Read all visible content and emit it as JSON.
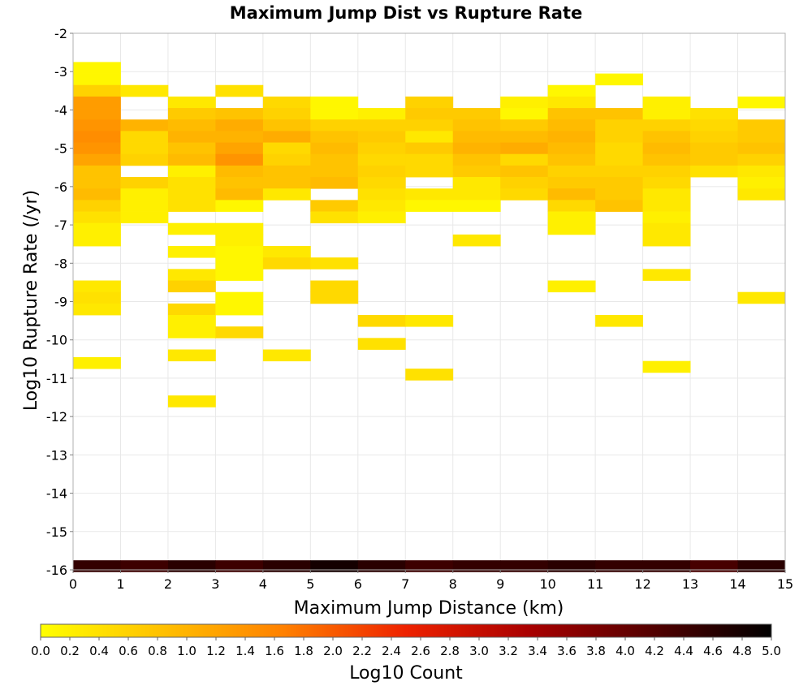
{
  "chart_data": {
    "type": "heatmap",
    "title": "Maximum Jump Dist vs Rupture Rate",
    "xlabel": "Maximum Jump Distance (km)",
    "ylabel": "Log10 Rupture Rate (/yr)",
    "xlim": [
      0,
      15
    ],
    "ylim": [
      -16,
      -2
    ],
    "x_ticks": [
      "0",
      "1",
      "2",
      "3",
      "4",
      "5",
      "6",
      "7",
      "8",
      "9",
      "10",
      "11",
      "12",
      "13",
      "14",
      "15"
    ],
    "y_ticks": [
      "-2",
      "-3",
      "-4",
      "-5",
      "-6",
      "-7",
      "-8",
      "-9",
      "-10",
      "-11",
      "-12",
      "-13",
      "-14",
      "-15",
      "-16"
    ],
    "bin_width_x": 1,
    "bin_height_y": 0.3,
    "grid": true,
    "colorbar": {
      "label": "Log10 Count",
      "range": [
        0.0,
        5.0
      ],
      "tick_labels": [
        "0.0",
        "0.2",
        "0.4",
        "0.6",
        "0.8",
        "1.0",
        "1.2",
        "1.4",
        "1.6",
        "1.8",
        "2.0",
        "2.2",
        "2.4",
        "2.6",
        "2.8",
        "3.0",
        "3.2",
        "3.4",
        "3.6",
        "3.8",
        "4.0",
        "4.2",
        "4.4",
        "4.6",
        "4.8",
        "5.0"
      ],
      "colors": [
        "#ffff00",
        "#ffc000",
        "#ff8000",
        "#ee2200",
        "#aa0000",
        "#550000",
        "#000000"
      ]
    },
    "columns": [
      {
        "x": 0.5,
        "cells": [
          [
            -2.9,
            0.1
          ],
          [
            -3.2,
            0.1
          ],
          [
            -3.5,
            0.6
          ],
          [
            -3.8,
            1.3
          ],
          [
            -4.1,
            1.3
          ],
          [
            -4.4,
            1.4
          ],
          [
            -4.7,
            1.5
          ],
          [
            -5.0,
            1.4
          ],
          [
            -5.3,
            1.2
          ],
          [
            -5.6,
            0.8
          ],
          [
            -5.9,
            0.8
          ],
          [
            -6.2,
            0.9
          ],
          [
            -6.5,
            0.6
          ],
          [
            -6.8,
            0.4
          ],
          [
            -7.1,
            0.2
          ],
          [
            -7.4,
            0.2
          ],
          [
            -8.6,
            0.3
          ],
          [
            -8.9,
            0.4
          ],
          [
            -9.2,
            0.3
          ],
          [
            -10.6,
            0.2
          ],
          [
            -15.9,
            4.5
          ]
        ]
      },
      {
        "x": 1.5,
        "cells": [
          [
            -3.5,
            0.3
          ],
          [
            -4.4,
            1.0
          ],
          [
            -4.7,
            0.5
          ],
          [
            -5.0,
            0.5
          ],
          [
            -5.3,
            0.6
          ],
          [
            -5.9,
            0.6
          ],
          [
            -6.2,
            0.2
          ],
          [
            -6.5,
            0.2
          ],
          [
            -6.8,
            0.2
          ],
          [
            -15.9,
            4.4
          ]
        ]
      },
      {
        "x": 2.5,
        "cells": [
          [
            -3.8,
            0.3
          ],
          [
            -4.1,
            0.7
          ],
          [
            -4.4,
            0.9
          ],
          [
            -4.7,
            1.0
          ],
          [
            -5.0,
            0.8
          ],
          [
            -5.3,
            0.9
          ],
          [
            -5.6,
            0.2
          ],
          [
            -5.9,
            0.4
          ],
          [
            -6.2,
            0.4
          ],
          [
            -6.5,
            0.4
          ],
          [
            -7.1,
            0.2
          ],
          [
            -7.7,
            0.2
          ],
          [
            -8.3,
            0.3
          ],
          [
            -8.6,
            0.6
          ],
          [
            -9.2,
            0.5
          ],
          [
            -9.5,
            0.2
          ],
          [
            -9.8,
            0.2
          ],
          [
            -10.4,
            0.3
          ],
          [
            -11.6,
            0.3
          ],
          [
            -15.9,
            4.6
          ]
        ]
      },
      {
        "x": 3.5,
        "cells": [
          [
            -3.5,
            0.4
          ],
          [
            -4.1,
            0.8
          ],
          [
            -4.4,
            1.1
          ],
          [
            -4.7,
            1.0
          ],
          [
            -5.0,
            1.2
          ],
          [
            -5.3,
            1.4
          ],
          [
            -5.6,
            0.9
          ],
          [
            -5.9,
            0.8
          ],
          [
            -6.2,
            0.9
          ],
          [
            -6.5,
            0.1
          ],
          [
            -7.1,
            0.2
          ],
          [
            -7.4,
            0.2
          ],
          [
            -7.7,
            0.1
          ],
          [
            -8.0,
            0.1
          ],
          [
            -8.3,
            0.1
          ],
          [
            -8.9,
            0.1
          ],
          [
            -9.2,
            0.1
          ],
          [
            -9.8,
            0.5
          ],
          [
            -15.9,
            4.4
          ]
        ]
      },
      {
        "x": 4.5,
        "cells": [
          [
            -3.8,
            0.5
          ],
          [
            -4.1,
            0.6
          ],
          [
            -4.4,
            0.8
          ],
          [
            -4.7,
            1.1
          ],
          [
            -5.0,
            0.5
          ],
          [
            -5.3,
            0.6
          ],
          [
            -5.6,
            0.8
          ],
          [
            -5.9,
            0.8
          ],
          [
            -6.2,
            0.3
          ],
          [
            -7.7,
            0.3
          ],
          [
            -8.0,
            0.5
          ],
          [
            -10.4,
            0.3
          ],
          [
            -15.9,
            4.6
          ]
        ]
      },
      {
        "x": 5.5,
        "cells": [
          [
            -3.8,
            0.1
          ],
          [
            -4.1,
            0.1
          ],
          [
            -4.4,
            0.6
          ],
          [
            -4.7,
            0.8
          ],
          [
            -5.0,
            0.9
          ],
          [
            -5.3,
            0.8
          ],
          [
            -5.6,
            0.8
          ],
          [
            -5.9,
            0.9
          ],
          [
            -6.5,
            0.7
          ],
          [
            -6.8,
            0.4
          ],
          [
            -8.0,
            0.4
          ],
          [
            -8.6,
            0.5
          ],
          [
            -8.9,
            0.5
          ],
          [
            -15.9,
            4.8
          ]
        ]
      },
      {
        "x": 6.5,
        "cells": [
          [
            -4.1,
            0.2
          ],
          [
            -4.4,
            0.6
          ],
          [
            -4.7,
            0.7
          ],
          [
            -5.0,
            0.6
          ],
          [
            -5.3,
            0.5
          ],
          [
            -5.6,
            0.6
          ],
          [
            -5.9,
            0.5
          ],
          [
            -6.2,
            0.4
          ],
          [
            -6.5,
            0.3
          ],
          [
            -6.8,
            0.2
          ],
          [
            -9.5,
            0.5
          ],
          [
            -10.1,
            0.4
          ],
          [
            -15.9,
            4.6
          ]
        ]
      },
      {
        "x": 7.5,
        "cells": [
          [
            -3.8,
            0.6
          ],
          [
            -4.1,
            0.7
          ],
          [
            -4.4,
            0.6
          ],
          [
            -4.7,
            0.3
          ],
          [
            -5.0,
            0.7
          ],
          [
            -5.3,
            0.5
          ],
          [
            -5.6,
            0.5
          ],
          [
            -6.2,
            0.3
          ],
          [
            -6.5,
            0.1
          ],
          [
            -9.5,
            0.3
          ],
          [
            -10.9,
            0.4
          ],
          [
            -15.9,
            4.4
          ]
        ]
      },
      {
        "x": 8.5,
        "cells": [
          [
            -4.1,
            0.7
          ],
          [
            -4.4,
            0.8
          ],
          [
            -4.7,
            0.9
          ],
          [
            -5.0,
            1.0
          ],
          [
            -5.3,
            0.8
          ],
          [
            -5.6,
            0.7
          ],
          [
            -5.9,
            0.3
          ],
          [
            -6.2,
            0.3
          ],
          [
            -6.5,
            0.1
          ],
          [
            -7.4,
            0.3
          ],
          [
            -15.9,
            4.5
          ]
        ]
      },
      {
        "x": 9.5,
        "cells": [
          [
            -3.8,
            0.2
          ],
          [
            -4.1,
            0.1
          ],
          [
            -4.4,
            0.7
          ],
          [
            -4.7,
            0.9
          ],
          [
            -5.0,
            1.1
          ],
          [
            -5.3,
            0.5
          ],
          [
            -5.6,
            0.8
          ],
          [
            -5.9,
            0.6
          ],
          [
            -6.2,
            0.5
          ],
          [
            -15.9,
            4.5
          ]
        ]
      },
      {
        "x": 10.5,
        "cells": [
          [
            -3.5,
            0.1
          ],
          [
            -3.8,
            0.3
          ],
          [
            -4.1,
            0.8
          ],
          [
            -4.4,
            0.9
          ],
          [
            -4.7,
            1.0
          ],
          [
            -5.0,
            0.9
          ],
          [
            -5.3,
            0.8
          ],
          [
            -5.6,
            0.6
          ],
          [
            -5.9,
            0.7
          ],
          [
            -6.2,
            0.9
          ],
          [
            -6.5,
            0.5
          ],
          [
            -6.8,
            0.2
          ],
          [
            -7.1,
            0.2
          ],
          [
            -8.6,
            0.2
          ],
          [
            -15.9,
            4.6
          ]
        ]
      },
      {
        "x": 11.5,
        "cells": [
          [
            -3.2,
            0.1
          ],
          [
            -4.1,
            0.8
          ],
          [
            -4.4,
            0.6
          ],
          [
            -4.7,
            0.6
          ],
          [
            -5.0,
            0.5
          ],
          [
            -5.3,
            0.5
          ],
          [
            -5.6,
            0.6
          ],
          [
            -5.9,
            0.7
          ],
          [
            -6.2,
            0.7
          ],
          [
            -6.5,
            0.8
          ],
          [
            -9.5,
            0.3
          ],
          [
            -15.9,
            4.5
          ]
        ]
      },
      {
        "x": 12.5,
        "cells": [
          [
            -3.8,
            0.2
          ],
          [
            -4.1,
            0.2
          ],
          [
            -4.4,
            0.6
          ],
          [
            -4.7,
            0.8
          ],
          [
            -5.0,
            0.9
          ],
          [
            -5.3,
            0.8
          ],
          [
            -5.6,
            0.6
          ],
          [
            -5.9,
            0.5
          ],
          [
            -6.2,
            0.3
          ],
          [
            -6.5,
            0.3
          ],
          [
            -6.8,
            0.2
          ],
          [
            -7.1,
            0.3
          ],
          [
            -7.4,
            0.3
          ],
          [
            -8.3,
            0.3
          ],
          [
            -10.7,
            0.2
          ],
          [
            -15.9,
            4.5
          ]
        ]
      },
      {
        "x": 13.5,
        "cells": [
          [
            -4.1,
            0.4
          ],
          [
            -4.4,
            0.5
          ],
          [
            -4.7,
            0.6
          ],
          [
            -5.0,
            0.7
          ],
          [
            -5.3,
            0.7
          ],
          [
            -5.6,
            0.4
          ],
          [
            -15.9,
            4.3
          ]
        ]
      },
      {
        "x": 14.5,
        "cells": [
          [
            -3.8,
            0.1
          ],
          [
            -4.4,
            0.7
          ],
          [
            -4.7,
            0.7
          ],
          [
            -5.0,
            0.8
          ],
          [
            -5.3,
            0.6
          ],
          [
            -5.6,
            0.3
          ],
          [
            -5.9,
            0.2
          ],
          [
            -6.2,
            0.3
          ],
          [
            -8.9,
            0.3
          ],
          [
            -15.9,
            4.6
          ]
        ]
      }
    ]
  }
}
